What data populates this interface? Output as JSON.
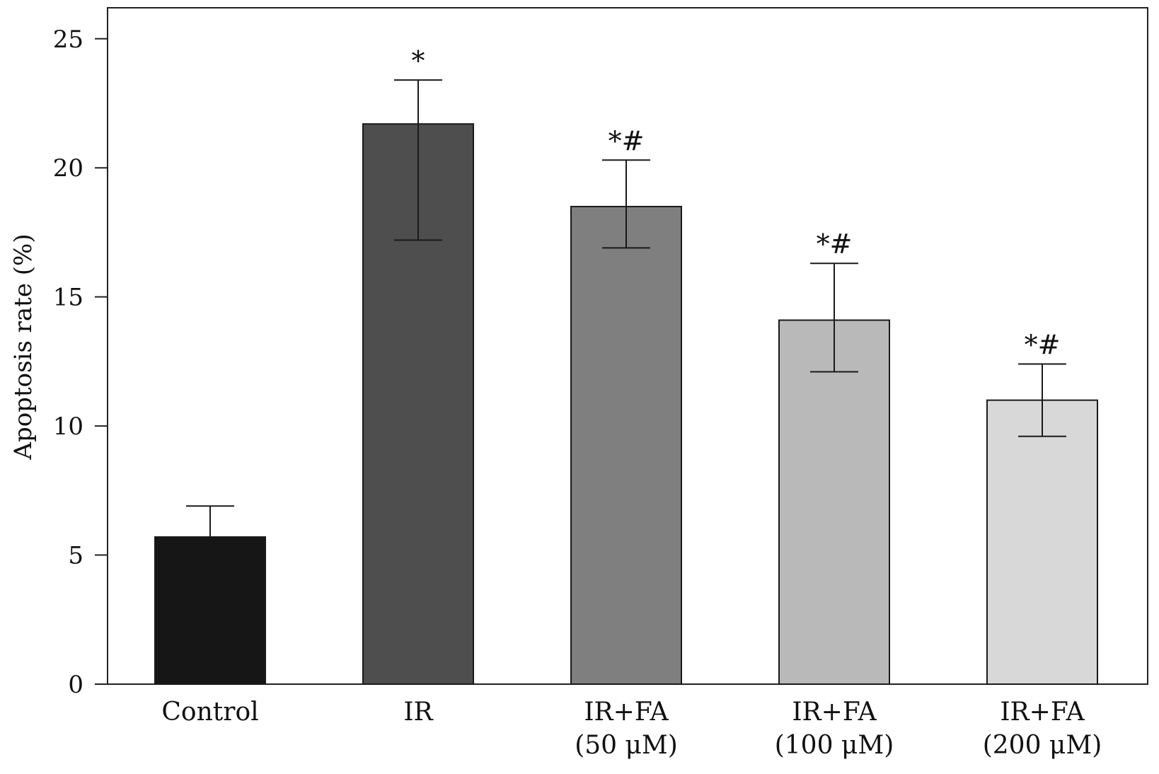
{
  "chart_data": {
    "type": "bar",
    "title": "",
    "xlabel": "",
    "ylabel": "Apoptosis rate (%)",
    "ylim": [
      0,
      26.2
    ],
    "yticks": [
      0,
      5,
      10,
      15,
      20,
      25
    ],
    "grid": false,
    "legend": "none",
    "categories": [
      [
        "Control"
      ],
      [
        "IR"
      ],
      [
        "IR+FA",
        "(50 μM)"
      ],
      [
        "IR+FA",
        "(100 μM)"
      ],
      [
        "IR+FA",
        "(200 μM)"
      ]
    ],
    "values": [
      5.7,
      21.7,
      18.5,
      14.1,
      11.0
    ],
    "error_upper": [
      6.9,
      23.4,
      20.3,
      16.3,
      12.4
    ],
    "error_lower": [
      5.7,
      17.2,
      16.9,
      12.1,
      9.6
    ],
    "significance": [
      "",
      "*",
      "*#",
      "*#",
      "*#"
    ],
    "bar_colors": [
      "#161616",
      "#4e4e4e",
      "#7f7f7f",
      "#b9b9b9",
      "#d8d8d8"
    ]
  }
}
